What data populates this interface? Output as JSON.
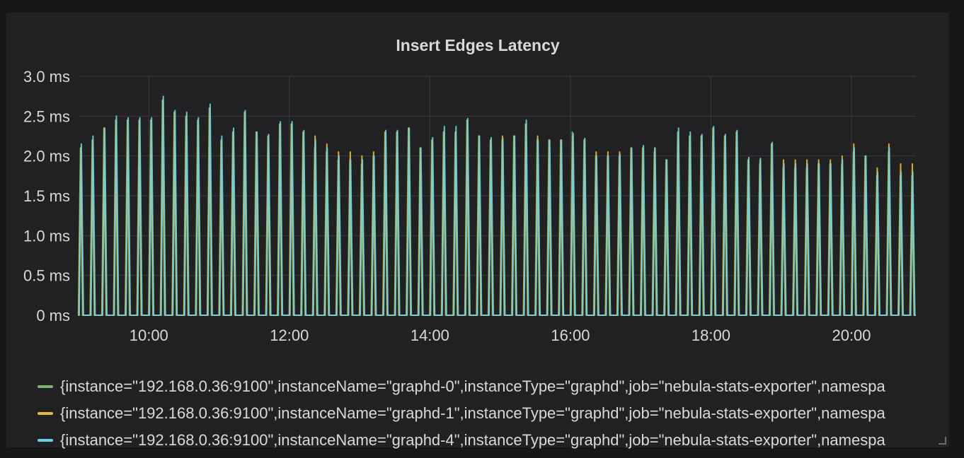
{
  "panel": {
    "title": "Insert Edges Latency"
  },
  "chart_data": {
    "type": "line",
    "title": "Insert Edges Latency",
    "xlabel": "",
    "ylabel": "",
    "x_ticks": [
      "10:00",
      "12:00",
      "14:00",
      "16:00",
      "18:00",
      "20:00"
    ],
    "y_ticks": [
      "0 ms",
      "0.5 ms",
      "1.0 ms",
      "1.5 ms",
      "2.0 ms",
      "2.5 ms",
      "3.0 ms"
    ],
    "xlim": [
      "09:00",
      "20:55"
    ],
    "ylim": [
      0,
      3.0
    ],
    "grid": true,
    "legend_position": "bottom",
    "spike_times": [
      "09:02",
      "09:12",
      "09:22",
      "09:32",
      "09:42",
      "09:52",
      "10:02",
      "10:12",
      "10:22",
      "10:32",
      "10:42",
      "10:52",
      "11:02",
      "11:12",
      "11:22",
      "11:32",
      "11:42",
      "11:52",
      "12:02",
      "12:12",
      "12:22",
      "12:32",
      "12:42",
      "12:52",
      "13:02",
      "13:12",
      "13:22",
      "13:32",
      "13:42",
      "13:52",
      "14:02",
      "14:12",
      "14:22",
      "14:32",
      "14:42",
      "14:52",
      "15:02",
      "15:12",
      "15:22",
      "15:32",
      "15:42",
      "15:52",
      "16:02",
      "16:12",
      "16:22",
      "16:32",
      "16:42",
      "16:52",
      "17:02",
      "17:12",
      "17:22",
      "17:32",
      "17:42",
      "17:52",
      "18:02",
      "18:12",
      "18:22",
      "18:32",
      "18:42",
      "18:52",
      "19:02",
      "19:12",
      "19:22",
      "19:32",
      "19:42",
      "19:52",
      "20:02",
      "20:12",
      "20:22",
      "20:32",
      "20:42",
      "20:52"
    ],
    "series": [
      {
        "name": "{instance=\"192.168.0.36:9100\",instanceName=\"graphd-0\",instanceType=\"graphd\",job=\"nebula-stats-exporter\",namespa",
        "color": "#7eb26d",
        "values": [
          2.1,
          2.2,
          2.35,
          2.45,
          2.45,
          2.45,
          2.45,
          2.7,
          2.55,
          2.5,
          2.45,
          2.6,
          2.2,
          2.3,
          2.55,
          2.3,
          2.25,
          2.4,
          2.4,
          2.3,
          2.1,
          2.05,
          1.95,
          1.95,
          1.9,
          2.0,
          2.3,
          2.3,
          2.35,
          2.1,
          2.2,
          2.3,
          2.3,
          2.45,
          2.25,
          2.2,
          2.2,
          2.25,
          2.4,
          2.2,
          2.2,
          2.2,
          2.3,
          2.2,
          2.0,
          2.0,
          2.0,
          2.1,
          2.1,
          2.05,
          1.95,
          2.3,
          2.25,
          2.25,
          2.35,
          2.25,
          2.3,
          1.95,
          1.9,
          2.15,
          1.85,
          1.85,
          1.85,
          1.9,
          1.9,
          1.9,
          2.05,
          2.0,
          1.75,
          2.05,
          1.75,
          1.75
        ]
      },
      {
        "name": "{instance=\"192.168.0.36:9100\",instanceName=\"graphd-1\",instanceType=\"graphd\",job=\"nebula-stats-exporter\",namespa",
        "color": "#eab839",
        "values": [
          2.1,
          2.2,
          2.35,
          2.45,
          2.45,
          2.45,
          2.45,
          2.7,
          2.55,
          2.5,
          2.45,
          2.6,
          2.2,
          2.3,
          2.55,
          2.3,
          2.25,
          2.4,
          2.4,
          2.3,
          2.25,
          2.15,
          2.05,
          2.05,
          2.0,
          2.05,
          2.3,
          2.3,
          2.35,
          2.1,
          2.2,
          2.3,
          2.3,
          2.45,
          2.25,
          2.2,
          2.25,
          2.25,
          2.4,
          2.25,
          2.2,
          2.2,
          2.25,
          2.2,
          2.05,
          2.05,
          2.05,
          2.1,
          2.1,
          2.1,
          1.95,
          2.3,
          2.25,
          2.25,
          2.35,
          2.25,
          2.3,
          1.95,
          1.95,
          2.15,
          1.95,
          1.95,
          1.95,
          1.95,
          1.95,
          2.0,
          2.15,
          2.0,
          1.85,
          2.15,
          1.9,
          1.9
        ]
      },
      {
        "name": "{instance=\"192.168.0.36:9100\",instanceName=\"graphd-4\",instanceType=\"graphd\",job=\"nebula-stats-exporter\",namespa",
        "color": "#6ed0e0",
        "values": [
          2.15,
          2.25,
          2.35,
          2.5,
          2.48,
          2.48,
          2.48,
          2.75,
          2.57,
          2.55,
          2.48,
          2.65,
          2.25,
          2.35,
          2.57,
          2.3,
          2.27,
          2.43,
          2.43,
          2.32,
          2.2,
          2.1,
          2.0,
          1.95,
          1.95,
          2.0,
          2.32,
          2.32,
          2.35,
          2.1,
          2.23,
          2.37,
          2.37,
          2.47,
          2.25,
          2.23,
          2.22,
          2.25,
          2.45,
          2.2,
          2.2,
          2.2,
          2.28,
          2.22,
          2.0,
          2.0,
          2.02,
          2.1,
          2.13,
          2.1,
          1.95,
          2.35,
          2.3,
          2.27,
          2.37,
          2.27,
          2.32,
          1.98,
          1.97,
          2.17,
          1.9,
          1.9,
          1.9,
          1.9,
          1.9,
          1.95,
          2.1,
          2.0,
          1.8,
          2.1,
          1.8,
          1.8
        ]
      }
    ]
  }
}
